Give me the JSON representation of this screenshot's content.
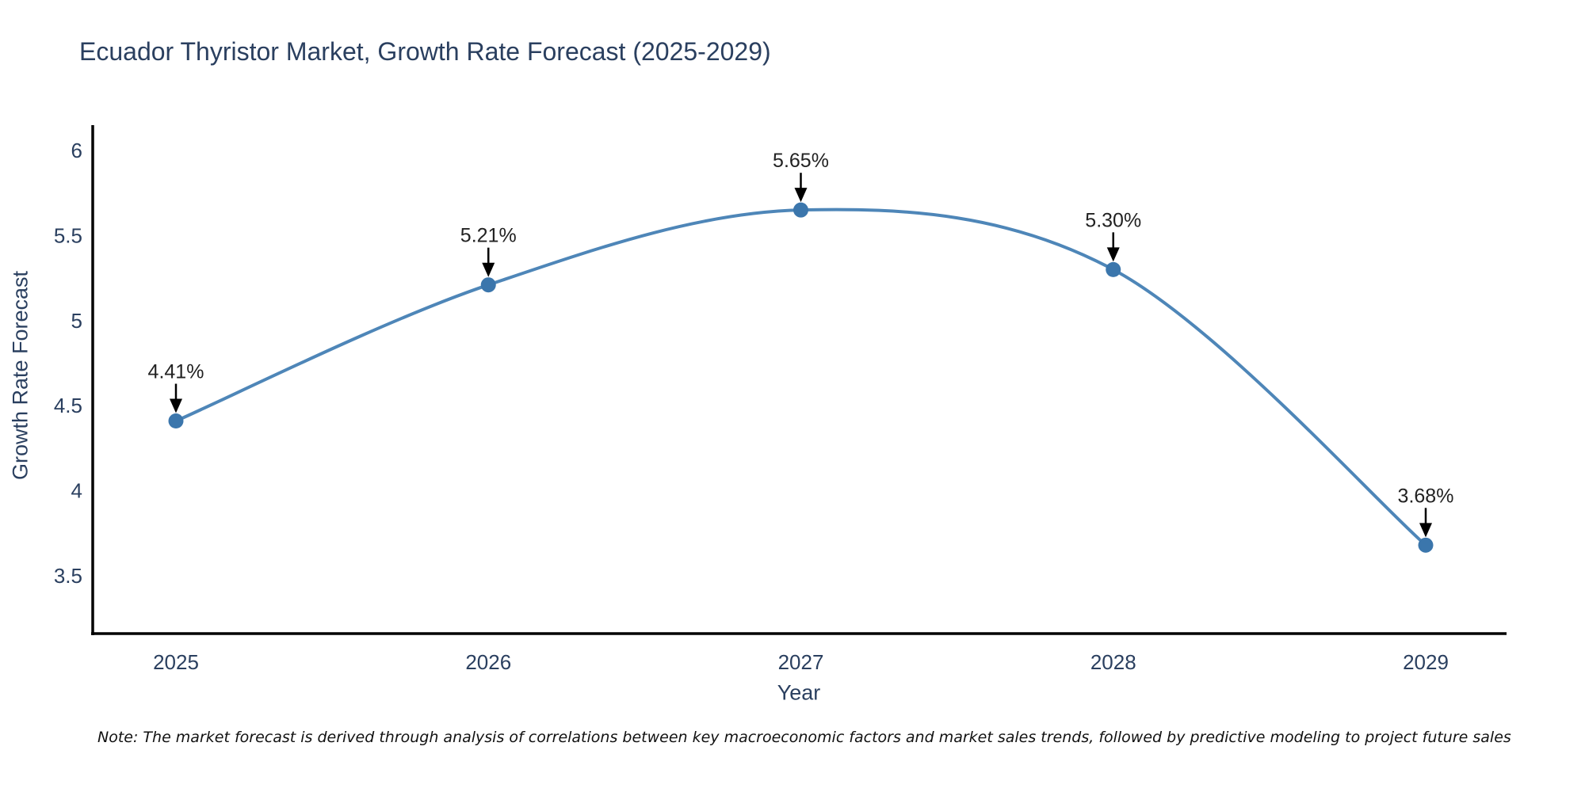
{
  "chart_data": {
    "type": "line",
    "line_shape": "spline",
    "title": "Ecuador Thyristor Market, Growth Rate Forecast (2025-2029)",
    "xlabel": "Year",
    "ylabel": "Growth Rate Forecast",
    "x": [
      2025,
      2026,
      2027,
      2028,
      2029
    ],
    "values": [
      4.41,
      5.21,
      5.65,
      5.3,
      3.68
    ],
    "point_labels": [
      "4.41%",
      "5.21%",
      "5.65%",
      "5.30%",
      "3.68%"
    ],
    "y_ticks": [
      6,
      5.5,
      5,
      4.5,
      4,
      3.5
    ],
    "ylim": [
      3.16,
      6.15
    ],
    "xlim": [
      2024.73,
      2029.27
    ],
    "grid": false,
    "legend": "none",
    "colors": {
      "line": "#4e86b8",
      "marker": "#3b76ac",
      "axis": "#000000",
      "tick_text": "#2a3f5f",
      "annotation_text": "#222222",
      "arrow": "#000000"
    },
    "note": "Note: The market forecast is derived through analysis of correlations between key macroeconomic factors and market sales trends, followed by predictive modeling to project future sales"
  }
}
